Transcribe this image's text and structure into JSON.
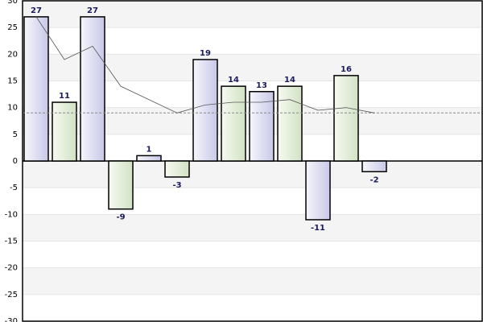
{
  "chart_data": {
    "type": "bar",
    "categories": [
      null,
      null,
      null,
      null,
      null,
      null,
      null,
      null,
      null,
      null,
      null,
      null,
      null
    ],
    "values": [
      27,
      11,
      27,
      -9,
      1,
      -3,
      19,
      14,
      13,
      14,
      -11,
      16,
      -2
    ],
    "colors": [
      "#d8d8f0",
      "#e2ecd8"
    ],
    "line_values": [
      27,
      19,
      21.5,
      14,
      11.5,
      9,
      10.5,
      11,
      11,
      11.5,
      9.5,
      10,
      9
    ],
    "line_color": "#555555",
    "reference_line": 9,
    "label_color": "#1a1a5e",
    "ylim": [
      -30,
      30
    ],
    "yticks": [
      -30,
      -25,
      -20,
      -15,
      -10,
      -5,
      0,
      5,
      10,
      15,
      20,
      25,
      30
    ],
    "grid": true
  }
}
